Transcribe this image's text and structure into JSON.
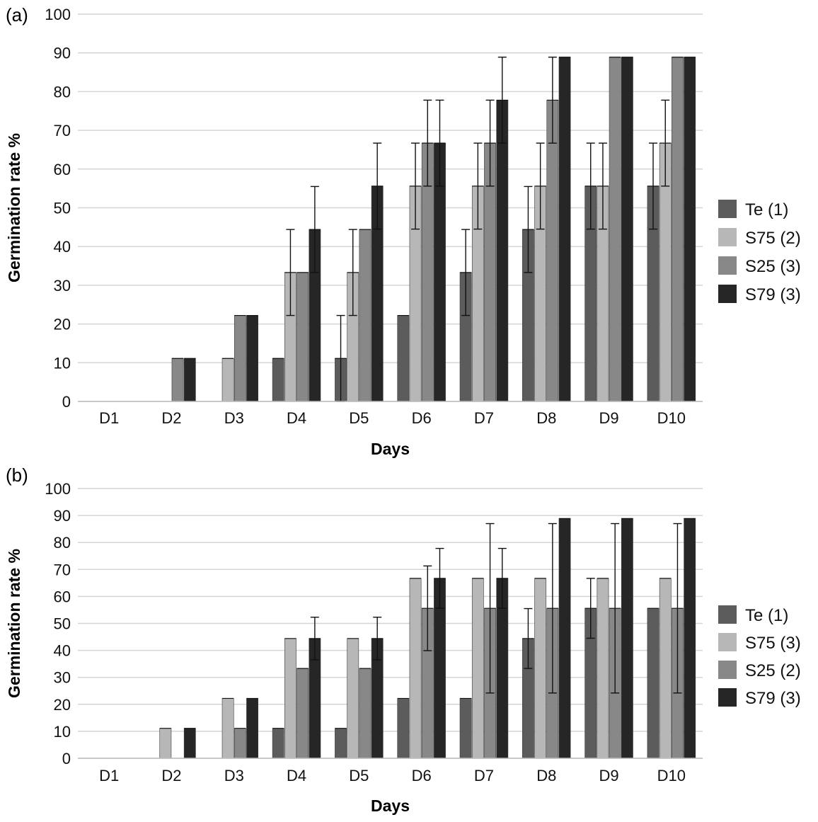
{
  "chart_data": [
    {
      "type": "bar",
      "panel_label": "(a)",
      "categories": [
        "D1",
        "D2",
        "D3",
        "D4",
        "D5",
        "D6",
        "D7",
        "D8",
        "D9",
        "D10"
      ],
      "xlabel": "Days",
      "ylabel": "Germination rate %",
      "ylim": [
        0,
        100
      ],
      "yticks": [
        "0",
        "10",
        "20",
        "30",
        "40",
        "50",
        "60",
        "70",
        "80",
        "90",
        "100"
      ],
      "grid": true,
      "legend_position": "right",
      "series": [
        {
          "name": "Te (1)",
          "color": "#5c5c5c",
          "values": [
            0,
            0,
            0,
            11.1,
            11.1,
            22.2,
            33.3,
            44.4,
            55.6,
            55.6
          ],
          "errors": [
            0,
            0,
            0,
            0,
            11.1,
            0,
            11.1,
            11.1,
            11.1,
            11.1
          ]
        },
        {
          "name": "S75 (2)",
          "color": "#b7b7b7",
          "values": [
            0,
            0,
            11.1,
            33.3,
            33.3,
            55.6,
            55.6,
            55.6,
            55.6,
            66.7
          ],
          "errors": [
            0,
            0,
            0,
            11.1,
            11.1,
            11.1,
            11.1,
            11.1,
            11.1,
            11.1
          ]
        },
        {
          "name": "S25 (3)",
          "color": "#888888",
          "values": [
            0,
            11.1,
            22.2,
            33.3,
            44.4,
            66.7,
            66.7,
            77.8,
            88.9,
            88.9
          ],
          "errors": [
            0,
            0,
            0,
            0,
            0,
            11.1,
            11.1,
            11.1,
            0,
            0
          ]
        },
        {
          "name": "S79 (3)",
          "color": "#262626",
          "values": [
            0,
            11.1,
            22.2,
            44.4,
            55.6,
            66.7,
            77.8,
            88.9,
            88.9,
            88.9
          ],
          "errors": [
            0,
            0,
            0,
            11.1,
            11.1,
            11.1,
            11.1,
            0,
            0,
            0
          ]
        }
      ]
    },
    {
      "type": "bar",
      "panel_label": "(b)",
      "categories": [
        "D1",
        "D2",
        "D3",
        "D4",
        "D5",
        "D6",
        "D7",
        "D8",
        "D9",
        "D10"
      ],
      "xlabel": "Days",
      "ylabel": "Germination rate %",
      "ylim": [
        0,
        100
      ],
      "yticks": [
        "0",
        "10",
        "20",
        "30",
        "40",
        "50",
        "60",
        "70",
        "80",
        "90",
        "100"
      ],
      "grid": true,
      "legend_position": "right",
      "series": [
        {
          "name": "Te (1)",
          "color": "#5c5c5c",
          "values": [
            0,
            0,
            0,
            11.1,
            11.1,
            22.2,
            22.2,
            44.4,
            55.6,
            55.6
          ],
          "errors": [
            0,
            0,
            0,
            0,
            0,
            0,
            0,
            11.1,
            11.1,
            0
          ]
        },
        {
          "name": "S75 (3)",
          "color": "#b7b7b7",
          "values": [
            0,
            11.1,
            22.2,
            44.4,
            44.4,
            66.7,
            66.7,
            66.7,
            66.7,
            66.7
          ],
          "errors": [
            0,
            0,
            0,
            0,
            0,
            0,
            0,
            0,
            0,
            0
          ]
        },
        {
          "name": "S25 (2)",
          "color": "#888888",
          "values": [
            0,
            0,
            11.1,
            33.3,
            33.3,
            55.6,
            55.6,
            55.6,
            55.6,
            55.6
          ],
          "errors": [
            0,
            0,
            0,
            0,
            0,
            15.7,
            31.4,
            31.4,
            31.4,
            31.4
          ]
        },
        {
          "name": "S79 (3)",
          "color": "#262626",
          "values": [
            0,
            11.1,
            22.2,
            44.4,
            44.4,
            66.7,
            66.7,
            88.9,
            88.9,
            88.9
          ],
          "errors": [
            0,
            0,
            0,
            7.9,
            7.9,
            11.1,
            11.1,
            0,
            0,
            0
          ]
        }
      ]
    }
  ]
}
